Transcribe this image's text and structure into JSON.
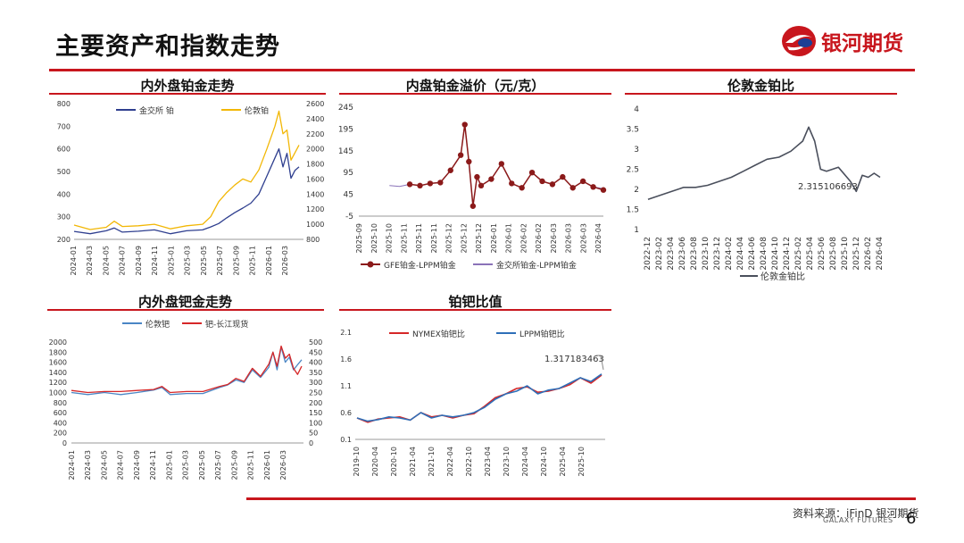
{
  "page": {
    "title": "主要资产和指数走势",
    "brand": "银河期货",
    "brand_en": "GALAXY FUTURES",
    "source": "资料来源：iFinD 银河期货",
    "page_number": "6",
    "colors": {
      "accent": "#c8161d"
    }
  },
  "chart_data": [
    {
      "id": "c1",
      "type": "line",
      "title": "内外盘铂金走势",
      "x_ticks": [
        "2024-01",
        "2024-03",
        "2024-05",
        "2024-07",
        "2024-09",
        "2024-11",
        "2025-01",
        "2025-03",
        "2025-05",
        "2025-07",
        "2025-09",
        "2025-11",
        "2026-01",
        "2026-03"
      ],
      "x_range": [
        0,
        28
      ],
      "left_axis": {
        "ticks": [
          "800",
          "700",
          "600",
          "500",
          "400",
          "300",
          "200"
        ],
        "ylim": [
          200,
          800
        ]
      },
      "right_axis": {
        "ticks": [
          "2600",
          "2400",
          "2200",
          "2000",
          "1800",
          "1600",
          "1400",
          "1200",
          "1000",
          "800"
        ],
        "ylim": [
          800,
          2600
        ]
      },
      "series": [
        {
          "name": "金交所 铂",
          "axis": "left",
          "color": "#2f3f8f",
          "points": [
            [
              0,
              235
            ],
            [
              2,
              225
            ],
            [
              4,
              238
            ],
            [
              5,
              250
            ],
            [
              6,
              232
            ],
            [
              8,
              236
            ],
            [
              10,
              242
            ],
            [
              12,
              225
            ],
            [
              14,
              238
            ],
            [
              16,
              242
            ],
            [
              17,
              255
            ],
            [
              18,
              270
            ],
            [
              19,
              295
            ],
            [
              20,
              318
            ],
            [
              21,
              338
            ],
            [
              22,
              360
            ],
            [
              23,
              400
            ],
            [
              24,
              480
            ],
            [
              25,
              560
            ],
            [
              25.5,
              600
            ],
            [
              26,
              520
            ],
            [
              26.5,
              580
            ],
            [
              27,
              470
            ],
            [
              27.5,
              505
            ],
            [
              28,
              520
            ]
          ]
        },
        {
          "name": "伦敦铂",
          "axis": "right",
          "color": "#f2b705",
          "points": [
            [
              0,
              990
            ],
            [
              2,
              930
            ],
            [
              4,
              960
            ],
            [
              5,
              1040
            ],
            [
              6,
              970
            ],
            [
              8,
              980
            ],
            [
              10,
              1000
            ],
            [
              12,
              940
            ],
            [
              14,
              980
            ],
            [
              16,
              1000
            ],
            [
              17,
              1100
            ],
            [
              18,
              1300
            ],
            [
              19,
              1420
            ],
            [
              20,
              1520
            ],
            [
              21,
              1600
            ],
            [
              22,
              1560
            ],
            [
              23,
              1720
            ],
            [
              24,
              2000
            ],
            [
              25,
              2300
            ],
            [
              25.5,
              2500
            ],
            [
              26,
              2200
            ],
            [
              26.5,
              2250
            ],
            [
              27,
              1850
            ],
            [
              27.5,
              1950
            ],
            [
              28,
              2050
            ]
          ]
        }
      ]
    },
    {
      "id": "c2",
      "type": "line",
      "title": "内盘铂金溢价（元/克）",
      "x_ticks": [
        "2025-09",
        "2025-10",
        "2025-10",
        "2025-11",
        "2025-11",
        "2025-11",
        "2025-12",
        "2025-12",
        "2025-12",
        "2026-01",
        "2026-01",
        "2026-02",
        "2026-02",
        "2026-03",
        "2026-03",
        "2026-03",
        "2026-04"
      ],
      "y_ticks": [
        "245",
        "195",
        "145",
        "95",
        "45",
        "-5"
      ],
      "ylim": [
        -5,
        245
      ],
      "series": [
        {
          "name": "GFE铂金-LPPM铂金",
          "color": "#8b1a1a",
          "marker": "circle",
          "points": [
            [
              5,
              68
            ],
            [
              6,
              65
            ],
            [
              7,
              70
            ],
            [
              8,
              72
            ],
            [
              9,
              100
            ],
            [
              10,
              135
            ],
            [
              10.4,
              205
            ],
            [
              10.8,
              120
            ],
            [
              11.2,
              18
            ],
            [
              11.6,
              85
            ],
            [
              12,
              65
            ],
            [
              13,
              80
            ],
            [
              14,
              115
            ],
            [
              15,
              70
            ],
            [
              16,
              60
            ],
            [
              17,
              95
            ],
            [
              18,
              75
            ],
            [
              19,
              68
            ],
            [
              20,
              85
            ],
            [
              21,
              60
            ],
            [
              22,
              75
            ],
            [
              23,
              62
            ],
            [
              24,
              55
            ]
          ]
        },
        {
          "name": "金交所铂金-LPPM铂金",
          "color": "#8a72b8",
          "marker": "none",
          "points": [
            [
              3,
              65
            ],
            [
              4,
              63
            ],
            [
              5,
              68
            ],
            [
              6,
              65
            ],
            [
              7,
              70
            ],
            [
              8,
              72
            ],
            [
              9,
              100
            ],
            [
              10,
              135
            ],
            [
              10.4,
              205
            ],
            [
              10.8,
              120
            ],
            [
              11.2,
              18
            ],
            [
              11.6,
              85
            ],
            [
              12,
              65
            ],
            [
              13,
              80
            ],
            [
              14,
              115
            ],
            [
              15,
              70
            ],
            [
              16,
              60
            ],
            [
              17,
              95
            ],
            [
              18,
              75
            ],
            [
              19,
              68
            ],
            [
              20,
              85
            ],
            [
              21,
              60
            ],
            [
              22,
              75
            ],
            [
              23,
              62
            ],
            [
              24,
              58
            ]
          ]
        }
      ]
    },
    {
      "id": "c3",
      "type": "line",
      "title": "伦敦金铂比",
      "x_ticks": [
        "2022-12",
        "2023-02",
        "2023-04",
        "2023-06",
        "2023-08",
        "2023-10",
        "2023-12",
        "2024-02",
        "2024-04",
        "2024-06",
        "2024-08",
        "2024-10",
        "2024-12",
        "2025-02",
        "2025-04",
        "2025-06",
        "2025-08",
        "2025-10",
        "2025-12",
        "2026-02",
        "2026-04"
      ],
      "y_ticks": [
        "4",
        "3.5",
        "3",
        "2.5",
        "2",
        "1.5",
        "1"
      ],
      "ylim": [
        1,
        4
      ],
      "annotation": "2.315106693",
      "series": [
        {
          "name": "伦敦金铂比",
          "color": "#4a4f5c",
          "points": [
            [
              0,
              1.75
            ],
            [
              1,
              1.85
            ],
            [
              2,
              1.95
            ],
            [
              3,
              2.05
            ],
            [
              4,
              2.05
            ],
            [
              5,
              2.1
            ],
            [
              6,
              2.2
            ],
            [
              7,
              2.3
            ],
            [
              8,
              2.45
            ],
            [
              9,
              2.6
            ],
            [
              10,
              2.75
            ],
            [
              11,
              2.8
            ],
            [
              12,
              2.95
            ],
            [
              13,
              3.2
            ],
            [
              13.5,
              3.55
            ],
            [
              14,
              3.2
            ],
            [
              14.5,
              2.5
            ],
            [
              15,
              2.45
            ],
            [
              16,
              2.55
            ],
            [
              17,
              2.2
            ],
            [
              17.5,
              1.95
            ],
            [
              18,
              2.35
            ],
            [
              18.5,
              2.3
            ],
            [
              19,
              2.4
            ],
            [
              19.5,
              2.3
            ]
          ]
        }
      ]
    },
    {
      "id": "c4",
      "type": "line",
      "title": "内外盘钯金走势",
      "x_ticks": [
        "2024-01",
        "2024-03",
        "2024-05",
        "2024-07",
        "2024-09",
        "2024-11",
        "2025-01",
        "2025-03",
        "2025-05",
        "2025-07",
        "2025-09",
        "2025-11",
        "2026-01",
        "2026-03"
      ],
      "x_range": [
        0,
        28
      ],
      "left_axis": {
        "ticks": [
          "2000",
          "1800",
          "1600",
          "1400",
          "1200",
          "1000",
          "800",
          "600",
          "400",
          "200",
          "0"
        ],
        "ylim": [
          0,
          2000
        ]
      },
      "right_axis": {
        "ticks": [
          "500",
          "450",
          "400",
          "350",
          "300",
          "250",
          "200",
          "150",
          "100",
          "50",
          "0"
        ],
        "ylim": [
          0,
          500
        ]
      },
      "series": [
        {
          "name": "伦敦钯",
          "axis": "left",
          "color": "#4a86c5",
          "points": [
            [
              0,
              1000
            ],
            [
              2,
              960
            ],
            [
              4,
              1000
            ],
            [
              6,
              960
            ],
            [
              8,
              1000
            ],
            [
              10,
              1050
            ],
            [
              11,
              1100
            ],
            [
              12,
              960
            ],
            [
              14,
              980
            ],
            [
              16,
              980
            ],
            [
              18,
              1100
            ],
            [
              19,
              1150
            ],
            [
              20,
              1250
            ],
            [
              21,
              1200
            ],
            [
              22,
              1450
            ],
            [
              23,
              1300
            ],
            [
              24,
              1500
            ],
            [
              24.5,
              1800
            ],
            [
              25,
              1450
            ],
            [
              25.5,
              1900
            ],
            [
              26,
              1600
            ],
            [
              26.5,
              1700
            ],
            [
              27,
              1450
            ],
            [
              27.5,
              1550
            ],
            [
              28,
              1650
            ]
          ]
        },
        {
          "name": "钯-长江现货",
          "axis": "right",
          "color": "#d62728",
          "points": [
            [
              0,
              260
            ],
            [
              2,
              250
            ],
            [
              4,
              255
            ],
            [
              6,
              255
            ],
            [
              8,
              260
            ],
            [
              10,
              265
            ],
            [
              11,
              280
            ],
            [
              12,
              250
            ],
            [
              14,
              255
            ],
            [
              16,
              255
            ],
            [
              18,
              280
            ],
            [
              19,
              290
            ],
            [
              20,
              320
            ],
            [
              21,
              305
            ],
            [
              22,
              370
            ],
            [
              23,
              330
            ],
            [
              24,
              390
            ],
            [
              24.5,
              450
            ],
            [
              25,
              380
            ],
            [
              25.5,
              480
            ],
            [
              26,
              420
            ],
            [
              26.5,
              440
            ],
            [
              27,
              370
            ],
            [
              27.5,
              340
            ],
            [
              28,
              380
            ]
          ]
        }
      ]
    },
    {
      "id": "c5",
      "type": "line",
      "title": "铂钯比值",
      "x_ticks": [
        "2019-10",
        "2020-04",
        "2020-10",
        "2021-04",
        "2021-10",
        "2022-04",
        "2022-10",
        "2023-04",
        "2023-10",
        "2024-04",
        "2024-10",
        "2025-04",
        "2025-10"
      ],
      "y_ticks": [
        "2.1",
        "1.6",
        "1.1",
        "0.6",
        "0.1"
      ],
      "ylim": [
        0.1,
        2.1
      ],
      "annotation": "1.317183463",
      "series": [
        {
          "name": "NYMEX铂钯比",
          "color": "#d62728",
          "points": [
            [
              0,
              0.5
            ],
            [
              1,
              0.42
            ],
            [
              2,
              0.48
            ],
            [
              3,
              0.5
            ],
            [
              4,
              0.52
            ],
            [
              5,
              0.46
            ],
            [
              6,
              0.6
            ],
            [
              7,
              0.52
            ],
            [
              8,
              0.55
            ],
            [
              9,
              0.5
            ],
            [
              10,
              0.55
            ],
            [
              11,
              0.58
            ],
            [
              12,
              0.72
            ],
            [
              13,
              0.88
            ],
            [
              14,
              0.95
            ],
            [
              15,
              1.05
            ],
            [
              16,
              1.08
            ],
            [
              17,
              0.98
            ],
            [
              18,
              1.0
            ],
            [
              19,
              1.05
            ],
            [
              20,
              1.12
            ],
            [
              21,
              1.25
            ],
            [
              22,
              1.15
            ],
            [
              23,
              1.3
            ]
          ]
        },
        {
          "name": "LPPM铂钯比",
          "color": "#2e6fb8",
          "points": [
            [
              0,
              0.5
            ],
            [
              1,
              0.44
            ],
            [
              2,
              0.47
            ],
            [
              3,
              0.52
            ],
            [
              4,
              0.5
            ],
            [
              5,
              0.46
            ],
            [
              6,
              0.6
            ],
            [
              7,
              0.5
            ],
            [
              8,
              0.55
            ],
            [
              9,
              0.52
            ],
            [
              10,
              0.55
            ],
            [
              11,
              0.6
            ],
            [
              12,
              0.7
            ],
            [
              13,
              0.85
            ],
            [
              14,
              0.95
            ],
            [
              15,
              1.0
            ],
            [
              16,
              1.1
            ],
            [
              17,
              0.95
            ],
            [
              18,
              1.02
            ],
            [
              19,
              1.05
            ],
            [
              20,
              1.15
            ],
            [
              21,
              1.25
            ],
            [
              22,
              1.18
            ],
            [
              23,
              1.32
            ]
          ]
        }
      ]
    }
  ]
}
